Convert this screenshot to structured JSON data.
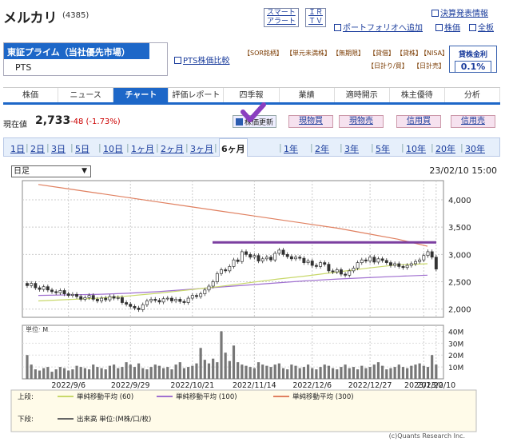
{
  "header": {
    "title": "メルカリ",
    "code": "(4385)",
    "links": {
      "smart_alert": "スマート\nアラート",
      "smart_alert_1": "スマート",
      "smart_alert_2": "アラート",
      "ir_1": "ＩＲ",
      "ir_2": "ＴＶ",
      "earnings": "決算発表情報",
      "portfolio": "ポートフォリオへ追加",
      "stock": "株価",
      "all": "全板"
    }
  },
  "market": {
    "primary": "東証プライム（当社優先市場）",
    "secondary": "PTS",
    "pts_compare": "PTS株価比較",
    "tags": [
      "【SOR銘柄】",
      "【単元未満株】",
      "【無期限】",
      "【貸借】",
      "【貸株】",
      "【NISA】",
      "【日計り/買】",
      "【日計売】"
    ],
    "loan_label": "貸株金利",
    "loan_rate": "0.1%"
  },
  "tabs": [
    {
      "label": "株価",
      "active": false
    },
    {
      "label": "ニュース",
      "active": false
    },
    {
      "label": "チャート",
      "active": true
    },
    {
      "label": "評価レポート",
      "active": false
    },
    {
      "label": "四季報",
      "active": false
    },
    {
      "label": "業績",
      "active": false
    },
    {
      "label": "適時開示",
      "active": false
    },
    {
      "label": "株主優待",
      "active": false
    },
    {
      "label": "分析",
      "active": false
    }
  ],
  "price": {
    "label": "現在値",
    "value": "2,733",
    "change": "-48 (-1.73%)",
    "refresh": "株価更新"
  },
  "trade_buttons": [
    "現物買",
    "現物売",
    "信用買",
    "信用売"
  ],
  "periods": [
    "1日",
    "2日",
    "3日",
    "5日",
    "10日",
    "1ヶ月",
    "2ヶ月",
    "3ヶ月",
    "6ヶ月",
    "1年",
    "2年",
    "3年",
    "5年",
    "10年",
    "20年",
    "30年"
  ],
  "active_period": "6ヶ月",
  "chart_controls": {
    "type_select": "日足",
    "datetime": "23/02/10 15:00"
  },
  "chart_data": {
    "type": "candlestick",
    "y_ticks": [
      "4,000",
      "3,500",
      "3,000",
      "2,500",
      "2,000"
    ],
    "ylim": [
      1850,
      4350
    ],
    "volume_label": "単位: M",
    "volume_ticks": [
      "40M",
      "30M",
      "20M",
      "10M"
    ],
    "volume_lim": [
      0,
      45
    ],
    "x_labels": [
      "2022/9/6",
      "2022/9/29",
      "2022/10/21",
      "2022/11/14",
      "2022/12/6",
      "2022/12/27",
      "2023/1/20",
      "2023/2/10"
    ],
    "candles_close": [
      2430,
      2470,
      2390,
      2360,
      2410,
      2350,
      2320,
      2300,
      2340,
      2280,
      2250,
      2270,
      2230,
      2180,
      2210,
      2250,
      2180,
      2150,
      2200,
      2170,
      2230,
      2200,
      2210,
      2120,
      2090,
      2050,
      2020,
      1990,
      2080,
      2150,
      2180,
      2160,
      2130,
      2190,
      2200,
      2150,
      2180,
      2140,
      2120,
      2200,
      2250,
      2230,
      2280,
      2350,
      2420,
      2500,
      2650,
      2720,
      2700,
      2780,
      2900,
      2870,
      3050,
      3000,
      2950,
      2980,
      2880,
      2920,
      2950,
      2900,
      3020,
      3080,
      3000,
      2960,
      2920,
      2950,
      2930,
      2850,
      2880,
      2800,
      2780,
      2850,
      2820,
      2700,
      2680,
      2720,
      2640,
      2620,
      2700,
      2750,
      2850,
      2900,
      2880,
      2950,
      2860,
      2920,
      2890,
      2850,
      2800,
      2830,
      2780,
      2760,
      2800,
      2830,
      2870,
      2900,
      2980,
      3050,
      2950,
      2733
    ],
    "ma60": [
      2150,
      2175,
      2200,
      2240,
      2290,
      2350,
      2410,
      2480,
      2550,
      2610,
      2680,
      2750,
      2810,
      2830
    ],
    "ma100": [
      2250,
      2260,
      2270,
      2290,
      2320,
      2360,
      2400,
      2440,
      2480,
      2520,
      2550,
      2575,
      2600,
      2620
    ],
    "ma300": [
      4280,
      4200,
      4120,
      4040,
      3960,
      3880,
      3800,
      3720,
      3640,
      3560,
      3480,
      3380,
      3280,
      3150
    ],
    "resistance_line": 3220,
    "volume": [
      20,
      12,
      8,
      7,
      9,
      10,
      6,
      8,
      10,
      9,
      7,
      8,
      11,
      10,
      9,
      8,
      12,
      10,
      9,
      8,
      11,
      12,
      9,
      10,
      14,
      12,
      10,
      13,
      9,
      8,
      10,
      12,
      11,
      9,
      10,
      8,
      12,
      14,
      9,
      10,
      11,
      13,
      26,
      16,
      13,
      17,
      14,
      40,
      22,
      15,
      28,
      14,
      12,
      11,
      10,
      9,
      14,
      12,
      11,
      10,
      12,
      13,
      9,
      8,
      12,
      11,
      9,
      10,
      12,
      9,
      8,
      10,
      12,
      11,
      9,
      8,
      10,
      12,
      9,
      10,
      8,
      11,
      9,
      10,
      12,
      14,
      11,
      8,
      9,
      10,
      12,
      10,
      9,
      11,
      12,
      13,
      11,
      10,
      20,
      12
    ],
    "legend_upper": {
      "label": "上段:",
      "items": [
        {
          "name": "単純移動平均 (60)",
          "color": "#c8d86a"
        },
        {
          "name": "単純移動平均 (100)",
          "color": "#a070d0"
        },
        {
          "name": "単純移動平均 (300)",
          "color": "#e08060"
        }
      ]
    },
    "legend_lower": {
      "label": "下段:",
      "items": [
        {
          "name": "出来高 単位:(M株/口/枚)",
          "color": "#666666"
        }
      ]
    },
    "colors": {
      "up": "#ffffff",
      "down": "#333333",
      "resistance": "#7b3fa0",
      "check": "#8a3fc0"
    }
  },
  "credit": "(c)Quants Research Inc."
}
